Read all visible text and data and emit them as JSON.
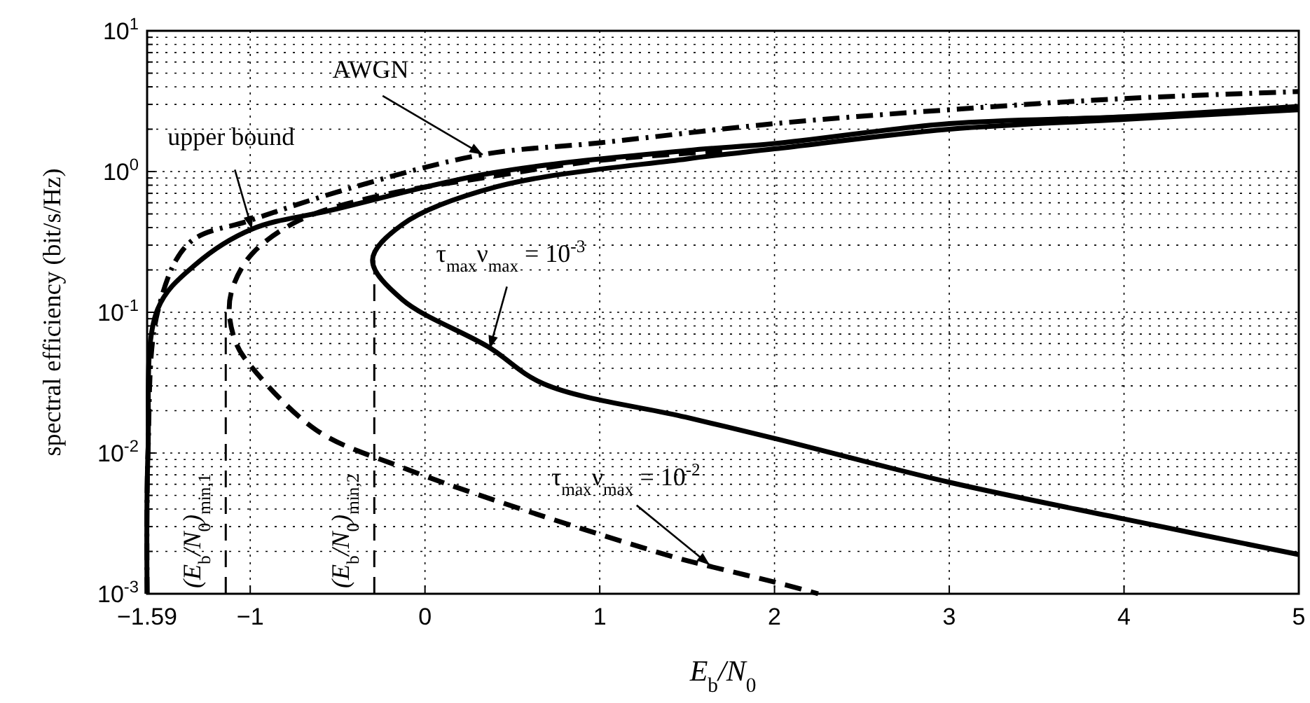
{
  "chart_data": {
    "type": "line",
    "xlabel": "E$_{b}$/N$_{0}$",
    "ylabel": "spectral efficiency (bit/s/Hz)",
    "xlim": [
      -1.59,
      5
    ],
    "xticks": [
      -1.59,
      -1,
      0,
      1,
      2,
      3,
      4,
      5
    ],
    "ylim": [
      0.001,
      10
    ],
    "yticks": [
      {
        "value": 0.001,
        "label": "10$^{-3}$"
      },
      {
        "value": 0.01,
        "label": "10$^{-2}$"
      },
      {
        "value": 0.1,
        "label": "10$^{-1}$"
      },
      {
        "value": 1,
        "label": "10$^{0}$"
      },
      {
        "value": 10,
        "label": "10$^{1}$"
      }
    ],
    "log": "y",
    "grid": true,
    "series": [
      {
        "color": "#000000",
        "line_style": "dashdot",
        "x": [
          -1.59,
          -1.585,
          -1.53,
          -1.35,
          -1,
          -0.4,
          0.33,
          1,
          2,
          3,
          4,
          5
        ],
        "values": [
          0.001,
          0.01,
          0.1,
          0.31,
          0.45,
          0.78,
          1.32,
          1.6,
          2.19,
          2.75,
          3.3,
          3.7
        ]
      },
      {
        "color": "#000000",
        "line_style": "solid",
        "x": [
          -1.59,
          -1.585,
          -1.53,
          -1.31,
          -0.99,
          -0.54,
          0.39,
          1.5,
          2,
          3,
          4,
          5
        ],
        "values": [
          0.001,
          0.01,
          0.105,
          0.22,
          0.39,
          0.53,
          0.98,
          1.41,
          1.58,
          2.19,
          2.45,
          2.9
        ]
      },
      {
        "color": "#000000",
        "line_style": "solid",
        "x": [
          5,
          4,
          3,
          2,
          1.5,
          0.41,
          -0.13,
          -0.3,
          -0.13,
          0.36,
          0.68,
          1.49,
          2,
          3,
          4,
          5
        ],
        "values": [
          2.75,
          2.35,
          2.0,
          1.45,
          1.23,
          0.78,
          0.42,
          0.235,
          0.123,
          0.057,
          0.031,
          0.018,
          0.0127,
          0.0062,
          0.0034,
          0.0019
        ]
      },
      {
        "color": "#000000",
        "line_style": "dashed",
        "x": [
          1.7,
          1.0,
          0.4,
          -0.29,
          -0.72,
          -0.99,
          -1.1,
          -1.12,
          -1.08,
          -1.0,
          -0.62,
          -0.13,
          0.55,
          1.44,
          1.6,
          2.06,
          2.25
        ],
        "values": [
          1.4,
          1.2,
          0.93,
          0.66,
          0.45,
          0.26,
          0.15,
          0.1,
          0.06,
          0.042,
          0.0145,
          0.0079,
          0.004,
          0.0018,
          0.0016,
          0.00116,
          0.001
        ]
      },
      {
        "color": "#000000",
        "line_style": "dashed",
        "x": [
          -1.14,
          -1.14
        ],
        "values": [
          0.001,
          0.1
        ]
      },
      {
        "color": "#000000",
        "line_style": "dashed",
        "x": [
          -0.29,
          -0.29
        ],
        "values": [
          0.001,
          0.235
        ]
      }
    ],
    "annotations": [
      {
        "text": "AWGN",
        "x": 0.33,
        "y": 1.32
      },
      {
        "text": "upper bound",
        "x": -0.99,
        "y": 0.39
      },
      {
        "text": "τ$_{max}$ν$_{max}$ = 10$^{-3}$",
        "x": 0.37,
        "y": 0.055
      },
      {
        "text": "τ$_{max}$ν$_{max}$ = 10$^{-2}$",
        "x": 1.63,
        "y": 0.0016
      },
      {
        "text": "(E$_{b}$/N$_{0}$)$_{min,1}$",
        "x": -1.14,
        "y": 0.001
      },
      {
        "text": "(E$_{b}$/N$_{0}$)$_{min,2}$",
        "x": -0.29,
        "y": 0.001
      }
    ]
  }
}
